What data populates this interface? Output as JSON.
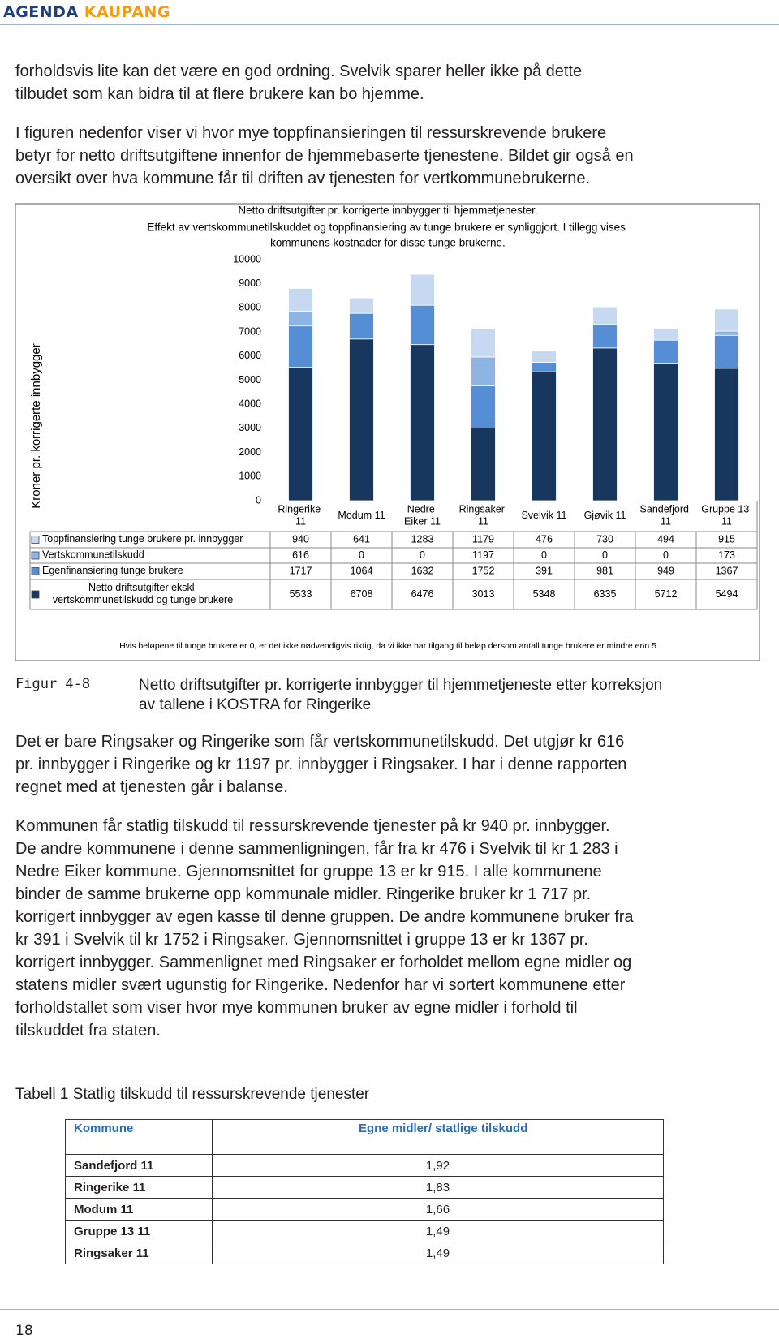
{
  "header": {
    "brand": "AGENDA",
    "brand_accent": "KAUPANG"
  },
  "paragraphs": [
    {
      "lines": [
        "forholdsvis lite kan det være en god ordning. Svelvik sparer heller ikke på dette",
        "tilbudet som kan bidra til at flere brukere kan bo hjemme."
      ]
    },
    {
      "lines": [
        "I figuren nedenfor viser vi hvor mye toppfinansieringen til ressurskrevende brukere",
        "betyr for netto driftsutgiftene innenfor de hjemmebaserte tjenestene. Bildet gir også en",
        "oversikt over hva kommune får til driften av tjenesten for vertkommunebrukerne."
      ]
    },
    {
      "lines": [
        "Det er bare Ringsaker og Ringerike som får vertskommunetilskudd. Det utgjør kr 616",
        "pr. innbygger i Ringerike og kr 1197 pr. innbygger i Ringsaker. I har i denne rapporten",
        "regnet med at tjenesten går i balanse."
      ]
    },
    {
      "lines": [
        "Kommunen får statlig tilskudd til ressurskrevende tjenester på kr 940 pr. innbygger.",
        "De andre kommunene i denne sammenligningen, får fra kr 476 i Svelvik til kr 1 283 i",
        "Nedre Eiker kommune. Gjennomsnittet for gruppe 13 er kr 915. I alle kommunene",
        "binder de samme brukerne opp kommunale midler. Ringerike bruker kr 1 717 pr.",
        "korrigert innbygger av egen kasse til denne gruppen. De andre kommunene bruker fra",
        "kr 391 i Svelvik til kr 1752 i Ringsaker. Gjennomsnittet i gruppe 13 er kr 1367 pr.",
        "korrigert innbygger. Sammenlignet med Ringsaker er forholdet mellom egne midler og",
        "statens midler svært ugunstig for Ringerike. Nedenfor har vi sortert kommunene etter",
        "forholdstallet som viser hvor mye kommunen bruker av egne midler i forhold til",
        "tilskuddet fra staten."
      ]
    }
  ],
  "chart_data": {
    "type": "stacked_bar",
    "title": "Netto driftsutgifter pr. korrigerte innbygger til hjemmetjenester.",
    "subtitle": "Effekt av vertskommunetilskuddet og toppfinansiering av tunge brukere er synliggjort. I tillegg vises kommunens kostnader for disse tunge brukerne.",
    "y_label": "Kroner pr. korrigerte innbygger",
    "categories": [
      "Ringerike 11",
      "Modum 11",
      "Nedre Eiker 11",
      "Ringsaker 11",
      "Svelvik 11",
      "Gjøvik 11",
      "Sandefjord 11",
      "Gruppe 13 11"
    ],
    "series": [
      {
        "name": "Toppfinansiering tunge brukere pr. innbygger",
        "color": "#c6d9f1",
        "values": [
          940,
          641,
          1283,
          1179,
          476,
          730,
          494,
          915
        ]
      },
      {
        "name": "Vertskommunetilskudd",
        "color": "#8eb4e3",
        "values": [
          616,
          0,
          0,
          1197,
          0,
          0,
          0,
          173
        ]
      },
      {
        "name": "Egenfinansiering tunge brukere",
        "color": "#558ed5",
        "values": [
          1717,
          1064,
          1632,
          1752,
          391,
          981,
          949,
          1367
        ]
      },
      {
        "name": "Netto driftsutgifter ekskl vertskommunetilskudd og tunge brukere",
        "color": "#17375e",
        "values": [
          5533,
          6708,
          6476,
          3013,
          5348,
          6335,
          5712,
          5494
        ]
      }
    ],
    "ylim": [
      0,
      10000
    ],
    "yticks": [
      0,
      1000,
      2000,
      3000,
      4000,
      5000,
      6000,
      7000,
      8000,
      9000,
      10000
    ],
    "grid": false,
    "note": "Hvis beløpene til tunge brukere er 0, er det ikke nødvendigvis riktig, da vi ikke har tilgang til beløp dersom antall tunge brukere er mindre enn 5"
  },
  "figure": {
    "label": "Figur 4-8",
    "caption": [
      "Netto driftsutgifter pr. korrigerte innbygger til hjemmetjeneste etter korreksjon",
      "av tallene i KOSTRA for Ringerike"
    ]
  },
  "table": {
    "title": "Tabell 1 Statlig tilskudd til ressurskrevende tjenester",
    "header": [
      "Kommune",
      "Egne midler/ statlige tilskudd"
    ],
    "rows": [
      [
        "Sandefjord 11",
        "1,92"
      ],
      [
        "Ringerike 11",
        "1,83"
      ],
      [
        "Modum 11",
        "1,66"
      ],
      [
        "Gruppe 13 11",
        "1,49"
      ],
      [
        "Ringsaker 11",
        "1,49"
      ]
    ]
  },
  "page_number": "18"
}
